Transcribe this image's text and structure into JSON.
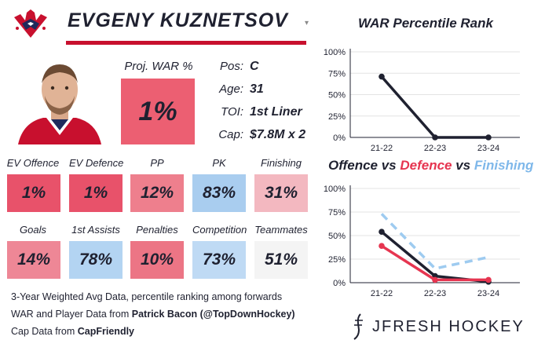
{
  "header": {
    "player_name": "EVGENY KUZNETSOV",
    "chevron": "▾"
  },
  "war": {
    "label": "Proj. WAR %",
    "value": "1%"
  },
  "info": [
    {
      "key": "Pos:",
      "value": "C"
    },
    {
      "key": "Age:",
      "value": "31"
    },
    {
      "key": "TOI:",
      "value": "1st Liner"
    },
    {
      "key": "Cap:",
      "value": "$7.8M x 2"
    }
  ],
  "stats_row1": [
    {
      "label": "EV Offence",
      "value": "1%",
      "color": "#e8526a"
    },
    {
      "label": "EV Defence",
      "value": "1%",
      "color": "#e8526a"
    },
    {
      "label": "PP",
      "value": "12%",
      "color": "#ee7f8d"
    },
    {
      "label": "PK",
      "value": "83%",
      "color": "#a9cdef"
    },
    {
      "label": "Finishing",
      "value": "31%",
      "color": "#f3b8c0"
    }
  ],
  "stats_row2": [
    {
      "label": "Goals",
      "value": "14%",
      "color": "#ee8796"
    },
    {
      "label": "1st Assists",
      "value": "78%",
      "color": "#b3d4f2"
    },
    {
      "label": "Penalties",
      "value": "10%",
      "color": "#ec7585"
    },
    {
      "label": "Competition",
      "value": "73%",
      "color": "#bfdaf4"
    },
    {
      "label": "Teammates",
      "value": "51%",
      "color": "#f4f4f4"
    }
  ],
  "footnotes": {
    "line1": "3-Year Weighted Avg Data, percentile ranking among forwards",
    "line2_prefix": "WAR and Player Data from ",
    "line2_bold": "Patrick Bacon (@TopDownHockey)",
    "line3_prefix": "Cap Data from ",
    "line3_bold": "CapFriendly"
  },
  "brand": {
    "name": "JFRESH HOCKEY"
  },
  "colors": {
    "navy": "#1f2130",
    "red": "#e63550",
    "light_blue": "#9ecbf0",
    "team_red": "#c8102e"
  },
  "chart_data": [
    {
      "type": "line",
      "title": "WAR Percentile Rank",
      "x": [
        "21-22",
        "22-23",
        "23-24"
      ],
      "y_ticks": [
        "0%",
        "25%",
        "50%",
        "75%",
        "100%"
      ],
      "ylim": [
        0,
        100
      ],
      "grid": true,
      "series": [
        {
          "values": [
            71,
            0,
            0
          ],
          "color": "#1f2130",
          "dashed": false
        }
      ]
    },
    {
      "type": "line",
      "title_parts": [
        {
          "text": "Offence",
          "color": "#1f2130"
        },
        {
          "text": " vs ",
          "color": "#1f2130"
        },
        {
          "text": "Defence",
          "color": "#e63550"
        },
        {
          "text": " vs ",
          "color": "#1f2130"
        },
        {
          "text": "Finishing",
          "color": "#7fb8ea"
        }
      ],
      "x": [
        "21-22",
        "22-23",
        "23-24"
      ],
      "y_ticks": [
        "0%",
        "25%",
        "50%",
        "75%",
        "100%"
      ],
      "ylim": [
        0,
        100
      ],
      "grid": true,
      "series": [
        {
          "name": "Finishing",
          "values": [
            73,
            15,
            27
          ],
          "color": "#9ecbf0",
          "dashed": true
        },
        {
          "name": "Offence",
          "values": [
            54,
            7,
            1
          ],
          "color": "#1f2130",
          "dashed": false
        },
        {
          "name": "Defence",
          "values": [
            39,
            3,
            3
          ],
          "color": "#e63550",
          "dashed": false
        }
      ]
    }
  ]
}
